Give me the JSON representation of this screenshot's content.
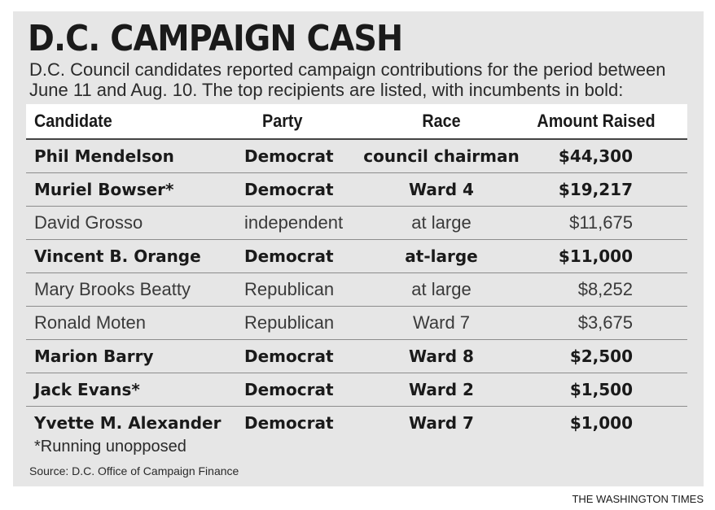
{
  "chart_data": {
    "type": "table",
    "title": "D.C. CAMPAIGN CASH",
    "subtitle_lines": [
      "D.C. Council candidates reported campaign contributions for the period between",
      "June 11 and Aug. 10. The top recipients are listed, with incumbents in bold:"
    ],
    "columns": [
      "Candidate",
      "Party",
      "Race",
      "Amount Raised"
    ],
    "rows": [
      {
        "candidate": "Phil Mendelson",
        "party": "Democrat",
        "race": "council chairman",
        "amount": "$44,300",
        "incumbent": true
      },
      {
        "candidate": "Muriel Bowser*",
        "party": "Democrat",
        "race": "Ward 4",
        "amount": "$19,217",
        "incumbent": true
      },
      {
        "candidate": "David Grosso",
        "party": "independent",
        "race": "at large",
        "amount": "$11,675",
        "incumbent": false
      },
      {
        "candidate": "Vincent B. Orange",
        "party": "Democrat",
        "race": "at-large",
        "amount": "$11,000",
        "incumbent": true
      },
      {
        "candidate": "Mary Brooks Beatty",
        "party": "Republican",
        "race": "at large",
        "amount": "$8,252",
        "incumbent": false
      },
      {
        "candidate": "Ronald Moten",
        "party": "Republican",
        "race": "Ward 7",
        "amount": "$3,675",
        "incumbent": false
      },
      {
        "candidate": "Marion Barry",
        "party": "Democrat",
        "race": "Ward 8",
        "amount": "$2,500",
        "incumbent": true
      },
      {
        "candidate": "Jack Evans*",
        "party": "Democrat",
        "race": "Ward 2",
        "amount": "$1,500",
        "incumbent": true
      },
      {
        "candidate": "Yvette M. Alexander",
        "party": "Democrat",
        "race": "Ward 7",
        "amount": "$1,000",
        "incumbent": true
      }
    ],
    "footnote": "*Running unopposed",
    "source": "Source: D.C. Office of Campaign Finance",
    "credit": "THE WASHINGTON TIMES"
  }
}
